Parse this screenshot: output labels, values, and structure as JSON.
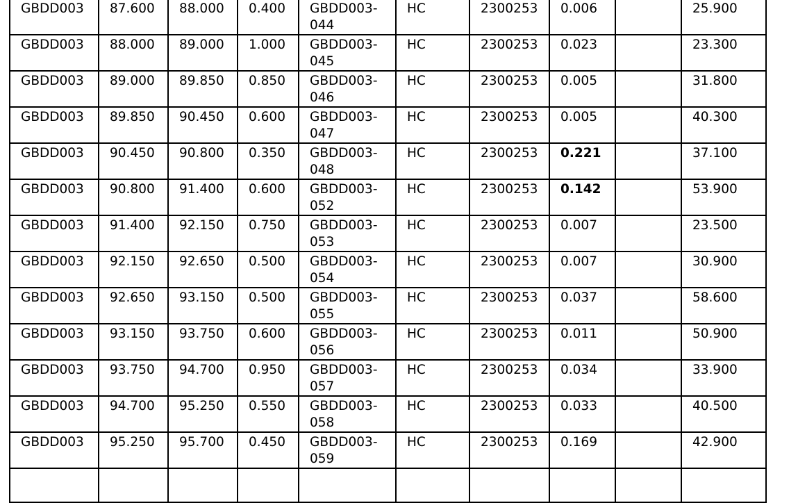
{
  "table": {
    "rows": [
      {
        "hole": "GBDD003",
        "from": "87.600",
        "to": "88.000",
        "length": "0.400",
        "sample": "GBDD003-044",
        "type": "HC",
        "batch": "2300253",
        "au": "0.006",
        "au_bold": false,
        "blank": "",
        "value": "25.900"
      },
      {
        "hole": "GBDD003",
        "from": "88.000",
        "to": "89.000",
        "length": "1.000",
        "sample": "GBDD003-045",
        "type": "HC",
        "batch": "2300253",
        "au": "0.023",
        "au_bold": false,
        "blank": "",
        "value": "23.300"
      },
      {
        "hole": "GBDD003",
        "from": "89.000",
        "to": "89.850",
        "length": "0.850",
        "sample": "GBDD003-046",
        "type": "HC",
        "batch": "2300253",
        "au": "0.005",
        "au_bold": false,
        "blank": "",
        "value": "31.800"
      },
      {
        "hole": "GBDD003",
        "from": "89.850",
        "to": "90.450",
        "length": "0.600",
        "sample": "GBDD003-047",
        "type": "HC",
        "batch": "2300253",
        "au": "0.005",
        "au_bold": false,
        "blank": "",
        "value": "40.300"
      },
      {
        "hole": "GBDD003",
        "from": "90.450",
        "to": "90.800",
        "length": "0.350",
        "sample": "GBDD003-048",
        "type": "HC",
        "batch": "2300253",
        "au": "0.221",
        "au_bold": true,
        "blank": "",
        "value": "37.100"
      },
      {
        "hole": "GBDD003",
        "from": "90.800",
        "to": "91.400",
        "length": "0.600",
        "sample": "GBDD003-052",
        "type": "HC",
        "batch": "2300253",
        "au": "0.142",
        "au_bold": true,
        "blank": "",
        "value": "53.900"
      },
      {
        "hole": "GBDD003",
        "from": "91.400",
        "to": "92.150",
        "length": "0.750",
        "sample": "GBDD003-053",
        "type": "HC",
        "batch": "2300253",
        "au": "0.007",
        "au_bold": false,
        "blank": "",
        "value": "23.500"
      },
      {
        "hole": "GBDD003",
        "from": "92.150",
        "to": "92.650",
        "length": "0.500",
        "sample": "GBDD003-054",
        "type": "HC",
        "batch": "2300253",
        "au": "0.007",
        "au_bold": false,
        "blank": "",
        "value": "30.900"
      },
      {
        "hole": "GBDD003",
        "from": "92.650",
        "to": "93.150",
        "length": "0.500",
        "sample": "GBDD003-055",
        "type": "HC",
        "batch": "2300253",
        "au": "0.037",
        "au_bold": false,
        "blank": "",
        "value": "58.600"
      },
      {
        "hole": "GBDD003",
        "from": "93.150",
        "to": "93.750",
        "length": "0.600",
        "sample": "GBDD003-056",
        "type": "HC",
        "batch": "2300253",
        "au": "0.011",
        "au_bold": false,
        "blank": "",
        "value": "50.900"
      },
      {
        "hole": "GBDD003",
        "from": "93.750",
        "to": "94.700",
        "length": "0.950",
        "sample": "GBDD003-057",
        "type": "HC",
        "batch": "2300253",
        "au": "0.034",
        "au_bold": false,
        "blank": "",
        "value": "33.900"
      },
      {
        "hole": "GBDD003",
        "from": "94.700",
        "to": "95.250",
        "length": "0.550",
        "sample": "GBDD003-058",
        "type": "HC",
        "batch": "2300253",
        "au": "0.033",
        "au_bold": false,
        "blank": "",
        "value": "40.500"
      },
      {
        "hole": "GBDD003",
        "from": "95.250",
        "to": "95.700",
        "length": "0.450",
        "sample": "GBDD003-059",
        "type": "HC",
        "batch": "2300253",
        "au": "0.169",
        "au_bold": false,
        "blank": "",
        "value": "42.900"
      }
    ]
  }
}
